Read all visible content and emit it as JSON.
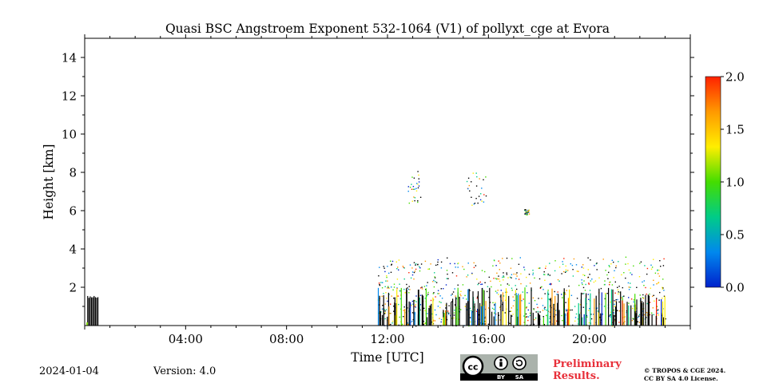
{
  "chart_data": {
    "type": "heatmap",
    "title": "Quasi BSC Angstroem Exponent 532-1064 (V1) of pollyxt_cge at Evora",
    "xlabel": "Time [UTC]",
    "ylabel": "Height [km]",
    "xlim_hours": [
      0,
      24
    ],
    "ylim_km": [
      0,
      15
    ],
    "x_ticks": [
      {
        "value": 4,
        "label": "04:00"
      },
      {
        "value": 8,
        "label": "08:00"
      },
      {
        "value": 12,
        "label": "12:00"
      },
      {
        "value": 16,
        "label": "16:00"
      },
      {
        "value": 20,
        "label": "20:00"
      }
    ],
    "y_ticks": [
      {
        "value": 2,
        "label": "2"
      },
      {
        "value": 4,
        "label": "4"
      },
      {
        "value": 6,
        "label": "6"
      },
      {
        "value": 8,
        "label": "8"
      },
      {
        "value": 10,
        "label": "10"
      },
      {
        "value": 12,
        "label": "12"
      },
      {
        "value": 14,
        "label": "14"
      }
    ],
    "colorbar": {
      "range": [
        0.0,
        2.0
      ],
      "ticks": [
        {
          "value": 0.0,
          "label": "0.0"
        },
        {
          "value": 0.5,
          "label": "0.5"
        },
        {
          "value": 1.0,
          "label": "1.0"
        },
        {
          "value": 1.5,
          "label": "1.5"
        },
        {
          "value": 2.0,
          "label": "2.0"
        }
      ],
      "colors": [
        "#0022cc",
        "#0088ee",
        "#00cc88",
        "#44dd00",
        "#ffee00",
        "#ff9900",
        "#ff2200"
      ]
    },
    "regions": [
      {
        "name": "early-low-layer",
        "t_start": 0.1,
        "t_end": 0.55,
        "h_min": 0.0,
        "h_max": 1.6,
        "style": "dark"
      },
      {
        "name": "pbl-afternoon",
        "t_start": 11.6,
        "t_end": 23.0,
        "h_min": 0.0,
        "h_max": 3.6,
        "style": "mixed"
      },
      {
        "name": "cloud-layer-1",
        "t_start": 12.8,
        "t_end": 13.3,
        "h_min": 6.4,
        "h_max": 8.1,
        "style": "mixed"
      },
      {
        "name": "cloud-layer-2",
        "t_start": 15.1,
        "t_end": 15.9,
        "h_min": 6.3,
        "h_max": 8.0,
        "style": "mixed"
      },
      {
        "name": "cloud-layer-3",
        "t_start": 17.4,
        "t_end": 17.6,
        "h_min": 5.8,
        "h_max": 6.1,
        "style": "mixed"
      }
    ]
  },
  "footer": {
    "date": "2024-01-04",
    "version": "Version: 4.0",
    "license_badge": {
      "cc": "cc",
      "by": "BY",
      "sa": "SA"
    },
    "preliminary_line1": "Preliminary",
    "preliminary_line2": "Results.",
    "copyright_line1": "© TROPOS & CGE 2024.",
    "copyright_line2": "CC BY SA 4.0 License."
  }
}
